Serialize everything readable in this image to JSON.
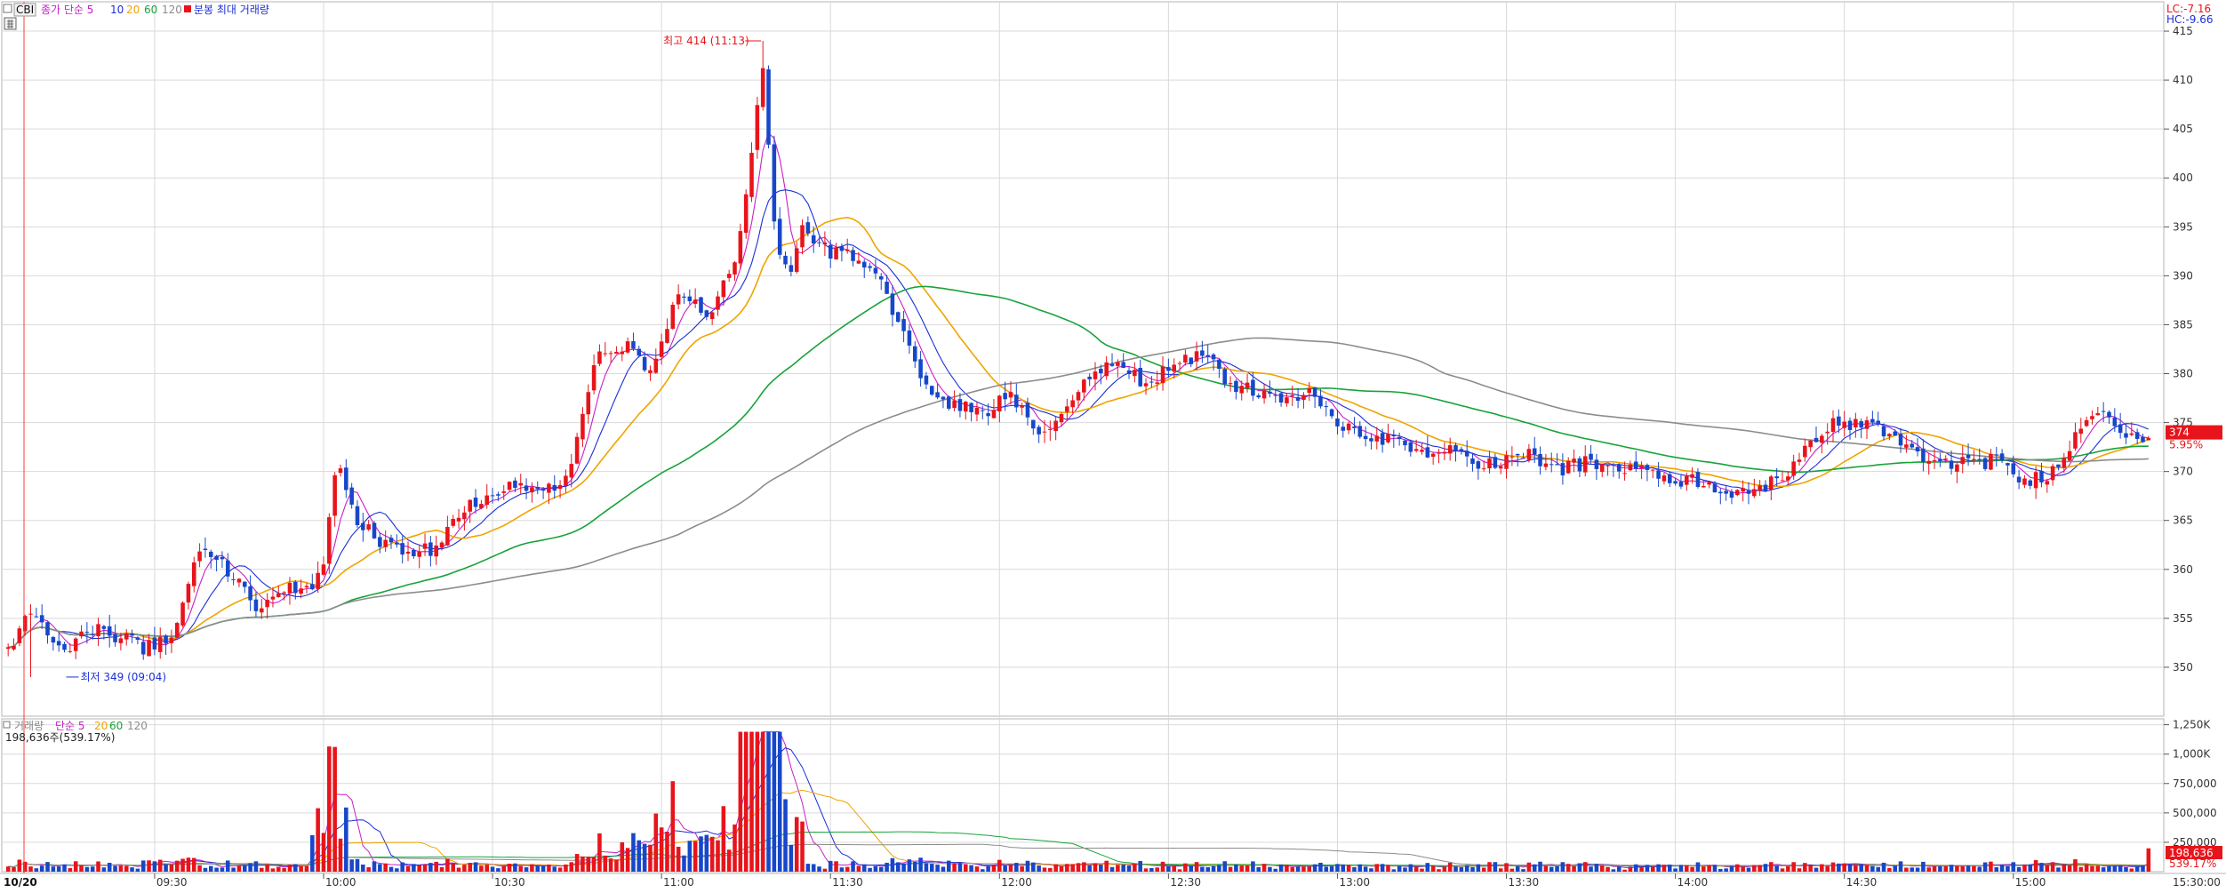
{
  "colors": {
    "up": "#e8141b",
    "down": "#1747c9",
    "ma5": "#c81fc8",
    "ma10": "#1c2fd6",
    "ma20": "#f0a400",
    "ma60": "#18a33a",
    "ma120": "#8c8c8c",
    "grid": "#d9d9d9",
    "cursor": "#ff3b3b",
    "price_tag": "#e8141b",
    "lc": "#e8141b",
    "hc": "#1c2fd6"
  },
  "price_legend": {
    "symbol": "CBI",
    "ma_label": "종가 단순 5",
    "p10": "10",
    "p20": "20",
    "p60": "60",
    "p120": "120",
    "extra": "분봉 최대 거래량"
  },
  "volume_legend": {
    "name": "거래량",
    "ma_label": "단순 5",
    "p20": "20",
    "p60": "60",
    "p120": "120",
    "current": "198,636주(539.17%)"
  },
  "limits": {
    "lc": "LC:-7.16",
    "hc": "HC:-9.66"
  },
  "current_price": {
    "value": "374",
    "pct": "5.95%"
  },
  "current_volume": {
    "value": "198,636",
    "pct": "539.17%"
  },
  "annotations": {
    "high": "최고 414 (11:13)",
    "low": "최저 349 (09:04)"
  },
  "x_axis": {
    "date": "10/20",
    "labels": [
      "09:30",
      "10:00",
      "10:30",
      "11:00",
      "11:30",
      "12:00",
      "12:30",
      "13:00",
      "13:30",
      "14:00",
      "14:30",
      "15:00"
    ],
    "end": "15:30:00"
  },
  "chart_data": {
    "type": "candlestick",
    "date": "10/20",
    "x_labels": [
      "09:30",
      "10:00",
      "10:30",
      "11:00",
      "11:30",
      "12:00",
      "12:30",
      "13:00",
      "13:30",
      "14:00",
      "14:30",
      "15:00"
    ],
    "price_ylim": [
      345,
      418
    ],
    "price_ticks": [
      350,
      355,
      360,
      365,
      370,
      375,
      380,
      385,
      390,
      395,
      400,
      405,
      410,
      415
    ],
    "volume_ylim": [
      0,
      1300000
    ],
    "volume_ticks": [
      "250,000",
      "500,000",
      "750,000",
      "1,000K",
      "1,250K"
    ],
    "volume_tick_values": [
      250000,
      500000,
      750000,
      1000000,
      1250000
    ],
    "high": 414,
    "high_time": "11:13",
    "low": 349,
    "low_time": "09:04",
    "last_price": 374,
    "last_change_pct": 5.95,
    "last_volume": 198636,
    "price_path": [
      [
        0,
        352
      ],
      [
        4,
        356
      ],
      [
        8,
        351
      ],
      [
        12,
        354
      ],
      [
        16,
        353
      ],
      [
        20,
        352
      ],
      [
        24,
        353
      ],
      [
        28,
        362
      ],
      [
        32,
        360
      ],
      [
        36,
        356
      ],
      [
        40,
        358
      ],
      [
        44,
        358
      ],
      [
        46,
        361
      ],
      [
        48,
        372
      ],
      [
        50,
        366
      ],
      [
        54,
        363
      ],
      [
        58,
        362
      ],
      [
        62,
        362
      ],
      [
        66,
        366
      ],
      [
        70,
        367
      ],
      [
        74,
        369
      ],
      [
        78,
        368
      ],
      [
        82,
        370
      ],
      [
        86,
        382
      ],
      [
        90,
        383
      ],
      [
        94,
        380
      ],
      [
        98,
        389
      ],
      [
        102,
        385
      ],
      [
        106,
        392
      ],
      [
        108,
        400
      ],
      [
        110,
        412
      ],
      [
        112,
        393
      ],
      [
        114,
        390
      ],
      [
        116,
        396
      ],
      [
        118,
        393
      ],
      [
        122,
        392
      ],
      [
        126,
        391
      ],
      [
        130,
        385
      ],
      [
        134,
        378
      ],
      [
        138,
        377
      ],
      [
        142,
        376
      ],
      [
        146,
        378
      ],
      [
        150,
        374
      ],
      [
        154,
        376
      ],
      [
        158,
        380
      ],
      [
        162,
        381
      ],
      [
        166,
        379
      ],
      [
        170,
        381
      ],
      [
        174,
        382
      ],
      [
        178,
        379
      ],
      [
        182,
        378
      ],
      [
        186,
        377
      ],
      [
        190,
        378
      ],
      [
        194,
        375
      ],
      [
        198,
        374
      ],
      [
        202,
        373
      ],
      [
        206,
        372
      ],
      [
        210,
        372
      ],
      [
        214,
        371
      ],
      [
        218,
        371
      ],
      [
        222,
        372
      ],
      [
        226,
        370
      ],
      [
        230,
        371
      ],
      [
        234,
        371
      ],
      [
        238,
        370
      ],
      [
        242,
        369
      ],
      [
        246,
        369
      ],
      [
        250,
        368
      ],
      [
        254,
        368
      ],
      [
        258,
        369
      ],
      [
        262,
        372
      ],
      [
        266,
        375
      ],
      [
        270,
        375
      ],
      [
        274,
        374
      ],
      [
        278,
        372
      ],
      [
        282,
        371
      ],
      [
        286,
        371
      ],
      [
        290,
        371
      ],
      [
        294,
        369
      ],
      [
        298,
        370
      ],
      [
        300,
        372
      ],
      [
        302,
        375
      ],
      [
        304,
        376
      ],
      [
        306,
        376
      ],
      [
        308,
        374
      ],
      [
        310,
        373
      ],
      [
        312,
        374
      ]
    ],
    "series": [
      {
        "name": "5",
        "type": "sma",
        "period": 5
      },
      {
        "name": "10",
        "type": "sma",
        "period": 10
      },
      {
        "name": "20",
        "type": "sma",
        "period": 20
      },
      {
        "name": "60",
        "type": "sma",
        "period": 60
      },
      {
        "name": "120",
        "type": "sma",
        "period": 120
      }
    ]
  }
}
